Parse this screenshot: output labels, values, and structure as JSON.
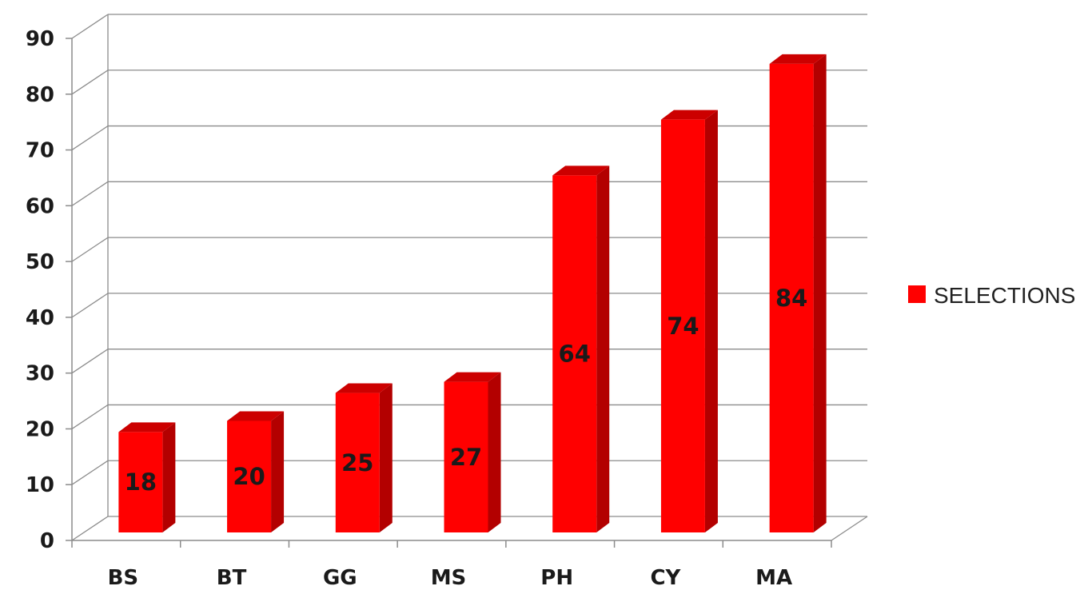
{
  "chart_data": {
    "type": "bar",
    "categories": [
      "BS",
      "BT",
      "GG",
      "MS",
      "PH",
      "CY",
      "MA"
    ],
    "series": [
      {
        "name": "SELECTIONS",
        "values": [
          18,
          20,
          25,
          27,
          64,
          74,
          84
        ]
      }
    ],
    "ylim": [
      0,
      90
    ],
    "yticks": [
      0,
      10,
      20,
      30,
      40,
      50,
      60,
      70,
      80,
      90
    ],
    "grid": true,
    "legend": "right",
    "style": "3d-column",
    "colors": {
      "bar_front": "#ff0000",
      "bar_side": "#b30000",
      "bar_top": "#cc0000",
      "grid": "#8c8c8c"
    }
  }
}
